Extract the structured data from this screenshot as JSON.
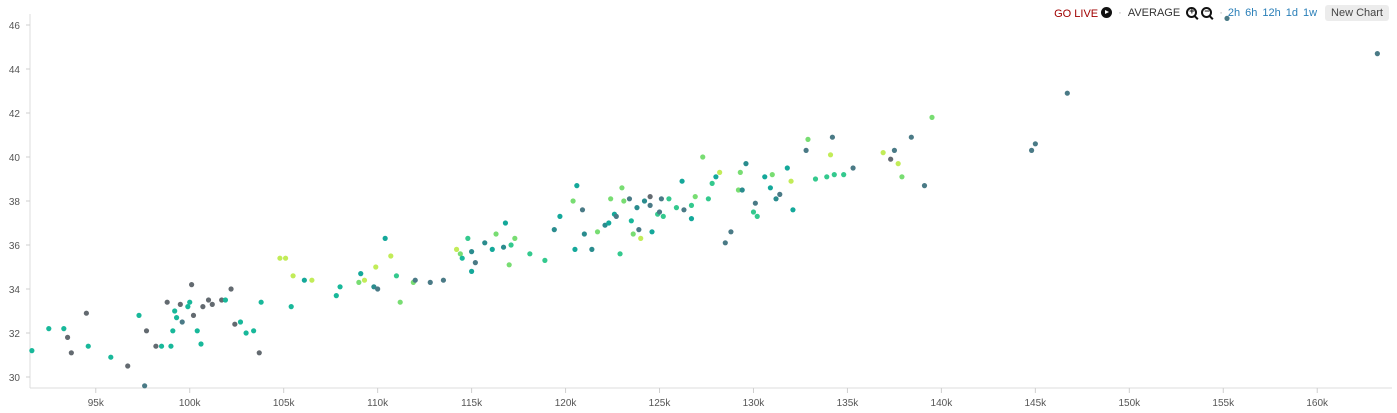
{
  "toolbar": {
    "go_live": "GO LIVE",
    "separator": "·",
    "aggregate": "AVERAGE",
    "ranges": [
      "2h",
      "6h",
      "12h",
      "1d",
      "1w"
    ],
    "new_chart": "New Chart"
  },
  "chart_data": {
    "type": "scatter",
    "title": "",
    "xlabel": "",
    "ylabel": "",
    "xlim": [
      91500,
      163500
    ],
    "ylim": [
      29.5,
      46.5
    ],
    "x_ticks": [
      95000,
      100000,
      105000,
      110000,
      115000,
      120000,
      125000,
      130000,
      135000,
      140000,
      145000,
      150000,
      155000,
      160000
    ],
    "x_tick_labels": [
      "95k",
      "100k",
      "105k",
      "110k",
      "115k",
      "120k",
      "125k",
      "130k",
      "135k",
      "140k",
      "145k",
      "150k",
      "155k",
      "160k"
    ],
    "y_ticks": [
      30,
      32,
      34,
      36,
      38,
      40,
      42,
      44,
      46
    ],
    "y_tick_labels": [
      "30",
      "32",
      "34",
      "36",
      "38",
      "40",
      "42",
      "44",
      "46"
    ],
    "grid": false,
    "palette": [
      "#636a70",
      "#4a7a86",
      "#2a8c8e",
      "#14a89a",
      "#18b89a",
      "#34c98e",
      "#78dd72",
      "#c2ec58"
    ],
    "points": [
      [
        91600,
        31.2,
        4
      ],
      [
        92500,
        32.2,
        4
      ],
      [
        93300,
        32.2,
        4
      ],
      [
        93500,
        31.8,
        0
      ],
      [
        93700,
        31.1,
        0
      ],
      [
        94500,
        32.9,
        0
      ],
      [
        94600,
        31.4,
        4
      ],
      [
        95800,
        30.9,
        4
      ],
      [
        96700,
        30.5,
        0
      ],
      [
        97300,
        32.8,
        4
      ],
      [
        97600,
        29.6,
        1
      ],
      [
        97700,
        32.1,
        0
      ],
      [
        98200,
        31.4,
        0
      ],
      [
        98500,
        31.4,
        4
      ],
      [
        98800,
        33.4,
        0
      ],
      [
        99000,
        31.4,
        4
      ],
      [
        99100,
        32.1,
        4
      ],
      [
        99200,
        33.0,
        4
      ],
      [
        99300,
        32.7,
        4
      ],
      [
        99500,
        33.3,
        0
      ],
      [
        99600,
        32.5,
        1
      ],
      [
        99900,
        33.2,
        4
      ],
      [
        100000,
        33.4,
        4
      ],
      [
        100100,
        34.2,
        0
      ],
      [
        100200,
        32.8,
        0
      ],
      [
        100400,
        32.1,
        4
      ],
      [
        100600,
        31.5,
        4
      ],
      [
        100700,
        33.2,
        0
      ],
      [
        101000,
        33.5,
        0
      ],
      [
        101200,
        33.3,
        0
      ],
      [
        101700,
        33.5,
        0
      ],
      [
        101900,
        33.5,
        4
      ],
      [
        102200,
        34.0,
        0
      ],
      [
        102400,
        32.4,
        0
      ],
      [
        102700,
        32.5,
        4
      ],
      [
        103000,
        32.0,
        4
      ],
      [
        103400,
        32.1,
        4
      ],
      [
        103700,
        31.1,
        0
      ],
      [
        103800,
        33.4,
        4
      ],
      [
        104800,
        35.4,
        7
      ],
      [
        105100,
        35.4,
        7
      ],
      [
        105400,
        33.2,
        4
      ],
      [
        105500,
        34.6,
        7
      ],
      [
        106100,
        34.4,
        3
      ],
      [
        106500,
        34.4,
        7
      ],
      [
        107800,
        33.7,
        4
      ],
      [
        108000,
        34.1,
        4
      ],
      [
        109000,
        34.3,
        6
      ],
      [
        109100,
        34.7,
        3
      ],
      [
        109300,
        34.4,
        7
      ],
      [
        109800,
        34.1,
        2
      ],
      [
        109900,
        35.0,
        7
      ],
      [
        110000,
        34.0,
        1
      ],
      [
        110400,
        36.3,
        3
      ],
      [
        110700,
        35.5,
        7
      ],
      [
        111000,
        34.6,
        5
      ],
      [
        111200,
        33.4,
        6
      ],
      [
        111900,
        34.3,
        6
      ],
      [
        112000,
        34.4,
        1
      ],
      [
        112800,
        34.3,
        1
      ],
      [
        113500,
        34.4,
        1
      ],
      [
        114200,
        35.8,
        7
      ],
      [
        114400,
        35.6,
        6
      ],
      [
        114500,
        35.4,
        4
      ],
      [
        114800,
        36.3,
        5
      ],
      [
        115000,
        35.7,
        2
      ],
      [
        115000,
        34.8,
        3
      ],
      [
        115200,
        35.2,
        1
      ],
      [
        115700,
        36.1,
        2
      ],
      [
        116100,
        35.8,
        3
      ],
      [
        116300,
        36.5,
        6
      ],
      [
        116700,
        35.9,
        2
      ],
      [
        116800,
        37.0,
        3
      ],
      [
        117000,
        35.1,
        6
      ],
      [
        117100,
        36.0,
        5
      ],
      [
        117300,
        36.3,
        6
      ],
      [
        118100,
        35.6,
        5
      ],
      [
        118900,
        35.3,
        5
      ],
      [
        119400,
        36.7,
        2
      ],
      [
        119700,
        37.3,
        3
      ],
      [
        120400,
        38.0,
        6
      ],
      [
        120500,
        35.8,
        3
      ],
      [
        120600,
        38.7,
        3
      ],
      [
        120900,
        37.6,
        1
      ],
      [
        121000,
        36.5,
        2
      ],
      [
        121400,
        35.8,
        2
      ],
      [
        121700,
        36.6,
        6
      ],
      [
        122100,
        36.9,
        2
      ],
      [
        122300,
        37.0,
        3
      ],
      [
        122400,
        38.1,
        6
      ],
      [
        122600,
        37.4,
        3
      ],
      [
        122700,
        37.3,
        1
      ],
      [
        122900,
        35.6,
        5
      ],
      [
        123000,
        38.6,
        6
      ],
      [
        123100,
        38.0,
        6
      ],
      [
        123400,
        38.1,
        1
      ],
      [
        123500,
        37.1,
        4
      ],
      [
        123600,
        36.5,
        6
      ],
      [
        123800,
        37.7,
        2
      ],
      [
        123900,
        36.7,
        1
      ],
      [
        124000,
        36.3,
        7
      ],
      [
        124200,
        38.0,
        2
      ],
      [
        124500,
        38.2,
        0
      ],
      [
        124500,
        37.8,
        1
      ],
      [
        124600,
        36.6,
        3
      ],
      [
        124900,
        37.4,
        5
      ],
      [
        125000,
        37.5,
        1
      ],
      [
        125100,
        38.1,
        1
      ],
      [
        125200,
        37.3,
        5
      ],
      [
        125500,
        38.1,
        5
      ],
      [
        125900,
        37.7,
        5
      ],
      [
        126200,
        38.9,
        3
      ],
      [
        126300,
        37.6,
        1
      ],
      [
        126700,
        37.2,
        3
      ],
      [
        126700,
        37.8,
        5
      ],
      [
        126900,
        38.2,
        6
      ],
      [
        127300,
        40.0,
        6
      ],
      [
        127600,
        38.1,
        5
      ],
      [
        127800,
        38.8,
        5
      ],
      [
        128000,
        39.1,
        3
      ],
      [
        128200,
        39.3,
        7
      ],
      [
        128500,
        36.1,
        1
      ],
      [
        128800,
        36.6,
        1
      ],
      [
        129200,
        38.5,
        6
      ],
      [
        129300,
        39.3,
        6
      ],
      [
        129400,
        38.5,
        2
      ],
      [
        129600,
        39.7,
        2
      ],
      [
        130000,
        37.5,
        5
      ],
      [
        130100,
        37.9,
        1
      ],
      [
        130200,
        37.3,
        5
      ],
      [
        130600,
        39.1,
        3
      ],
      [
        130900,
        38.6,
        3
      ],
      [
        131000,
        39.2,
        6
      ],
      [
        131200,
        38.1,
        2
      ],
      [
        131400,
        38.3,
        1
      ],
      [
        131800,
        39.5,
        3
      ],
      [
        132000,
        38.9,
        7
      ],
      [
        132100,
        37.6,
        3
      ],
      [
        132800,
        40.3,
        1
      ],
      [
        132900,
        40.8,
        6
      ],
      [
        133300,
        39.0,
        5
      ],
      [
        133900,
        39.1,
        5
      ],
      [
        134100,
        40.1,
        7
      ],
      [
        134200,
        40.9,
        1
      ],
      [
        134300,
        39.2,
        5
      ],
      [
        134800,
        39.2,
        5
      ],
      [
        135300,
        39.5,
        1
      ],
      [
        136900,
        40.2,
        7
      ],
      [
        137300,
        39.9,
        0
      ],
      [
        137500,
        40.3,
        1
      ],
      [
        137700,
        39.7,
        7
      ],
      [
        137900,
        39.1,
        6
      ],
      [
        138400,
        40.9,
        1
      ],
      [
        139100,
        38.7,
        1
      ],
      [
        139500,
        41.8,
        6
      ],
      [
        144800,
        40.3,
        1
      ],
      [
        145000,
        40.6,
        1
      ],
      [
        146700,
        42.9,
        1
      ],
      [
        155200,
        46.3,
        1
      ],
      [
        163200,
        44.7,
        1
      ]
    ]
  }
}
